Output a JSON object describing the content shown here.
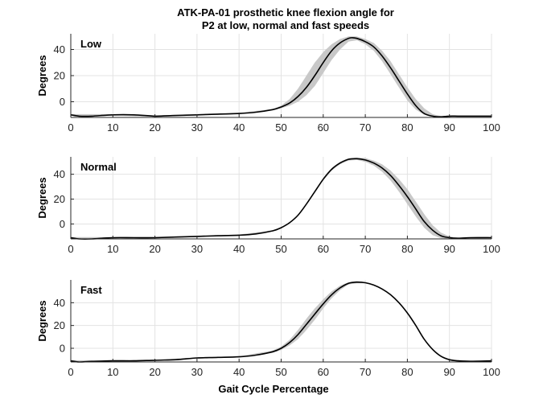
{
  "figure": {
    "title_line1": "ATK-PA-01 prosthetic knee flexion angle for",
    "title_line2": "P2 at low, normal and fast speeds",
    "xlabel": "Gait Cycle Percentage"
  },
  "chart_data": [
    {
      "type": "line",
      "panel_label": "Low",
      "ylabel": "Degrees",
      "xlim": [
        0,
        100
      ],
      "ylim": [
        -12,
        52
      ],
      "xticks": [
        0,
        10,
        20,
        30,
        40,
        50,
        60,
        70,
        80,
        90,
        100
      ],
      "yticks": [
        0,
        20,
        40
      ],
      "grid": true,
      "series": [
        {
          "role": "mean",
          "x": [
            0,
            2,
            5,
            10,
            15,
            20,
            25,
            30,
            35,
            40,
            44,
            48,
            50,
            52,
            54,
            56,
            58,
            60,
            62,
            64,
            66,
            67,
            68,
            70,
            72,
            74,
            76,
            78,
            80,
            82,
            84,
            86,
            88,
            90,
            92,
            95,
            100
          ],
          "y": [
            -10,
            -11,
            -11,
            -10,
            -10,
            -11,
            -10.5,
            -10,
            -9.5,
            -9,
            -8,
            -6,
            -4,
            -1,
            4,
            11,
            20,
            30,
            39,
            45,
            48.5,
            49,
            48.5,
            46,
            42,
            35,
            26,
            16,
            6,
            -3,
            -9,
            -11,
            -11.5,
            -11,
            -11,
            -11,
            -11
          ]
        },
        {
          "role": "band_upper",
          "x": [
            0,
            10,
            20,
            30,
            40,
            48,
            50,
            52,
            54,
            56,
            58,
            60,
            62,
            64,
            66,
            68,
            70,
            72,
            74,
            76,
            78,
            80,
            82,
            84,
            86,
            88,
            90,
            100
          ],
          "y": [
            -9.5,
            -9.5,
            -10.5,
            -9.5,
            -8.5,
            -5.5,
            -3,
            2,
            10,
            20,
            30,
            38,
            44,
            48,
            50,
            50,
            48,
            45,
            39,
            31,
            21,
            11,
            2,
            -5,
            -9.5,
            -11,
            -10.5,
            -10.5
          ]
        },
        {
          "role": "band_lower",
          "x": [
            0,
            10,
            20,
            30,
            40,
            48,
            50,
            52,
            54,
            56,
            58,
            60,
            62,
            64,
            66,
            68,
            70,
            72,
            74,
            76,
            78,
            80,
            82,
            84,
            86,
            88,
            90,
            100
          ],
          "y": [
            -10.5,
            -10.5,
            -11.5,
            -10.5,
            -9.5,
            -6.5,
            -5,
            -3,
            0,
            5,
            12,
            22,
            32,
            40,
            46,
            47,
            44,
            39,
            31,
            21,
            11,
            1,
            -6,
            -10,
            -11.5,
            -12,
            -11.5,
            -11.5
          ]
        }
      ]
    },
    {
      "type": "line",
      "panel_label": "Normal",
      "ylabel": "Degrees",
      "xlim": [
        0,
        100
      ],
      "ylim": [
        -12,
        54
      ],
      "xticks": [
        0,
        10,
        20,
        30,
        40,
        50,
        60,
        70,
        80,
        90,
        100
      ],
      "yticks": [
        0,
        20,
        40
      ],
      "grid": true,
      "series": [
        {
          "role": "mean",
          "x": [
            0,
            2,
            5,
            10,
            15,
            20,
            25,
            30,
            35,
            40,
            44,
            48,
            50,
            52,
            54,
            56,
            58,
            60,
            62,
            64,
            66,
            68,
            70,
            72,
            74,
            76,
            78,
            80,
            82,
            84,
            86,
            88,
            90,
            92,
            95,
            100
          ],
          "y": [
            -11,
            -12,
            -12,
            -11,
            -11,
            -11,
            -10.5,
            -10,
            -9.5,
            -9,
            -8,
            -5.5,
            -3,
            1,
            7,
            16,
            26,
            36,
            44,
            49,
            52,
            52.5,
            51.5,
            49,
            45,
            39,
            31,
            22,
            12,
            2,
            -5,
            -9.5,
            -11,
            -11.5,
            -11,
            -11
          ]
        },
        {
          "role": "band_upper",
          "x": [
            0,
            10,
            20,
            30,
            40,
            48,
            50,
            52,
            54,
            56,
            58,
            60,
            62,
            64,
            66,
            68,
            70,
            72,
            74,
            76,
            78,
            80,
            82,
            84,
            86,
            88,
            90,
            92,
            100
          ],
          "y": [
            -10.5,
            -10.5,
            -10.5,
            -9.5,
            -8.5,
            -5,
            -2.5,
            1.5,
            7.5,
            16.5,
            27,
            37,
            45,
            50,
            53,
            53.5,
            53,
            51,
            48,
            43,
            36,
            28,
            18,
            8,
            -1,
            -7,
            -10,
            -11,
            -10.5
          ]
        },
        {
          "role": "band_lower",
          "x": [
            0,
            10,
            20,
            30,
            40,
            48,
            50,
            52,
            54,
            56,
            58,
            60,
            62,
            64,
            66,
            68,
            70,
            72,
            74,
            76,
            78,
            80,
            82,
            84,
            86,
            88,
            90,
            92,
            100
          ],
          "y": [
            -11.5,
            -11.5,
            -11.5,
            -10.5,
            -9.5,
            -6,
            -3.5,
            0.5,
            6.5,
            15.5,
            25,
            35,
            43,
            48,
            51,
            51.5,
            50,
            47,
            42,
            35,
            26,
            16,
            6,
            -3,
            -9,
            -11.5,
            -12,
            -12,
            -11.5
          ]
        }
      ]
    },
    {
      "type": "line",
      "panel_label": "Fast",
      "ylabel": "Degrees",
      "xlim": [
        0,
        100
      ],
      "ylim": [
        -12,
        60
      ],
      "xticks": [
        0,
        10,
        20,
        30,
        40,
        50,
        60,
        70,
        80,
        90,
        100
      ],
      "yticks": [
        0,
        20,
        40
      ],
      "grid": true,
      "series": [
        {
          "role": "mean",
          "x": [
            0,
            2,
            5,
            10,
            15,
            20,
            25,
            30,
            35,
            40,
            44,
            48,
            50,
            52,
            54,
            56,
            58,
            60,
            62,
            64,
            66,
            68,
            70,
            72,
            74,
            76,
            78,
            80,
            82,
            84,
            86,
            88,
            90,
            92,
            95,
            100
          ],
          "y": [
            -11,
            -12,
            -11.5,
            -11,
            -11,
            -10.5,
            -10,
            -8.5,
            -8,
            -7.5,
            -6,
            -3,
            0,
            5,
            12,
            21,
            30,
            39,
            47,
            53,
            57,
            58,
            57.5,
            55.5,
            52,
            47,
            40,
            31,
            20,
            8,
            -1,
            -7,
            -10,
            -11,
            -11.5,
            -11
          ]
        },
        {
          "role": "band_upper",
          "x": [
            0,
            10,
            20,
            30,
            40,
            48,
            50,
            52,
            54,
            56,
            58,
            60,
            62,
            64,
            66,
            68,
            70,
            72,
            74,
            76,
            78,
            80,
            82,
            84,
            86,
            88,
            90,
            92,
            100
          ],
          "y": [
            -10.5,
            -10.5,
            -10,
            -8,
            -7,
            -2,
            1.5,
            7.5,
            16,
            26,
            35,
            43,
            50,
            55,
            58,
            59,
            58,
            56,
            52.5,
            47.5,
            40.5,
            31.5,
            20.5,
            8.5,
            -0.5,
            -6.5,
            -9.5,
            -10.5,
            -10.5
          ]
        },
        {
          "role": "band_lower",
          "x": [
            0,
            10,
            20,
            30,
            40,
            48,
            50,
            52,
            54,
            56,
            58,
            60,
            62,
            64,
            66,
            68,
            70,
            72,
            74,
            76,
            78,
            80,
            82,
            84,
            86,
            88,
            90,
            92,
            100
          ],
          "y": [
            -11.5,
            -11.5,
            -11,
            -9,
            -8,
            -4,
            -1.5,
            2.5,
            8,
            16,
            25,
            35,
            44,
            51,
            56,
            57,
            57,
            55,
            51.5,
            46.5,
            39.5,
            30.5,
            19.5,
            7.5,
            -1.5,
            -7.5,
            -10.5,
            -11.5,
            -11.5
          ]
        }
      ]
    }
  ]
}
